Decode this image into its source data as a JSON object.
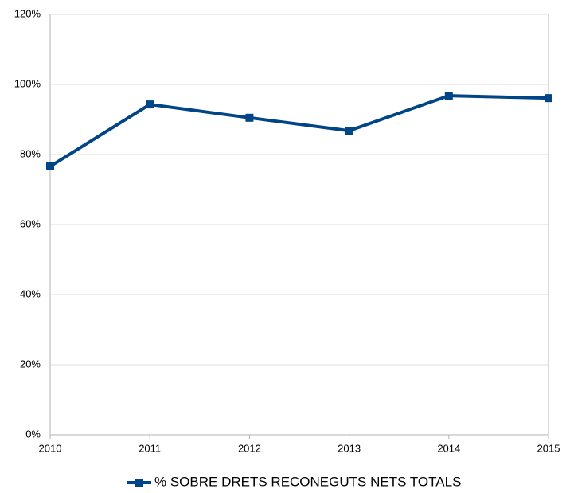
{
  "chart_data": {
    "type": "line",
    "x": [
      2010,
      2011,
      2012,
      2013,
      2014,
      2015
    ],
    "series": [
      {
        "name": "% SOBRE DRETS RECONEGUTS NETS TOTALS",
        "color": "#004586",
        "values": [
          76.6,
          94.3,
          90.5,
          86.8,
          96.8,
          96.1
        ]
      }
    ],
    "xlim": [
      2010,
      2015
    ],
    "xticks": [
      2010,
      2011,
      2012,
      2013,
      2014,
      2015
    ],
    "ylim": [
      0,
      120
    ],
    "yticks": [
      {
        "value": 0,
        "label": "0%"
      },
      {
        "value": 20,
        "label": "20%"
      },
      {
        "value": 40,
        "label": "40%"
      },
      {
        "value": 60,
        "label": "60%"
      },
      {
        "value": 80,
        "label": "80%"
      },
      {
        "value": 100,
        "label": "100%"
      },
      {
        "value": 120,
        "label": "120%"
      }
    ],
    "grid": true,
    "legend": "bottom"
  }
}
